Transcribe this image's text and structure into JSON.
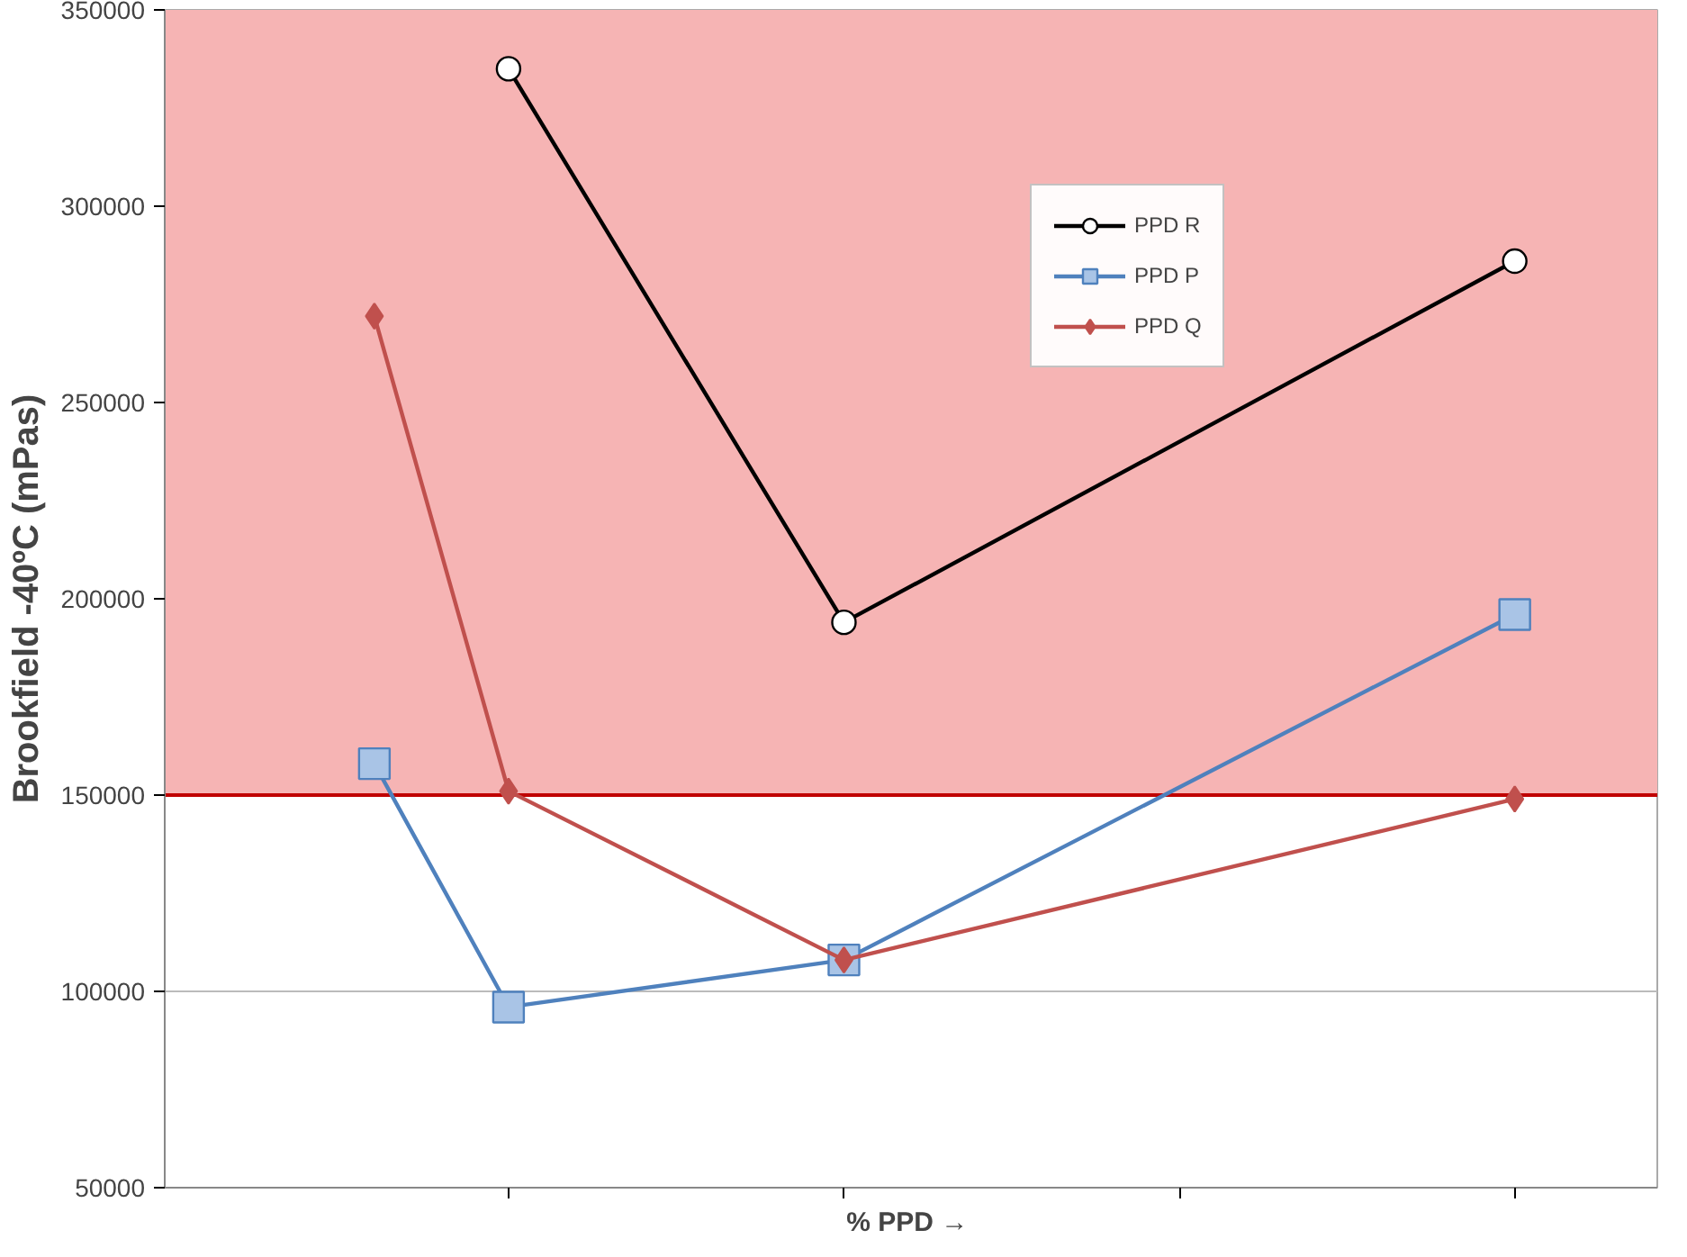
{
  "chart_data": {
    "type": "line",
    "xlabel": "% PPD  →",
    "ylabel": "Brookfield -40ºC (mPas)",
    "categories": [
      null,
      null,
      null,
      null,
      null,
      null,
      null,
      null,
      null,
      null,
      null,
      null,
      null,
      null,
      null,
      null,
      null,
      null,
      null,
      null,
      null,
      null,
      null,
      null,
      null,
      null,
      null,
      null,
      null,
      null,
      null,
      null,
      null,
      null,
      null,
      null,
      null,
      null,
      null,
      null,
      null,
      null,
      null,
      null,
      null,
      null,
      null,
      null,
      null,
      null,
      null,
      null,
      null,
      null,
      null,
      null,
      null,
      null,
      null,
      null,
      null,
      null,
      null,
      null,
      null,
      null,
      null,
      null,
      null,
      null,
      null,
      null,
      null,
      null,
      null,
      null,
      null,
      null,
      null,
      null,
      null,
      null,
      null,
      null,
      null,
      null,
      null,
      null,
      null
    ],
    "ylim": [
      50000,
      350000
    ],
    "yticks": [
      50000,
      100000,
      150000,
      200000,
      250000,
      300000,
      350000
    ],
    "tick_labels": "y",
    "grid": "y",
    "legend": "top right",
    "line_style": "solid",
    "series": [
      {
        "name": "PPD R",
        "color": "#000000",
        "marker": "circle",
        "values": [
          null,
          null,
          null,
          null,
          null,
          null,
          null,
          null,
          null,
          null,
          null,
          null,
          null,
          null,
          null,
          null,
          null,
          null,
          null,
          null,
          335000,
          null,
          null,
          null,
          null,
          null,
          null,
          null,
          null,
          null,
          null,
          null,
          null,
          null,
          null,
          null,
          null,
          null,
          null,
          null,
          194000,
          null,
          null,
          null,
          null,
          null,
          null,
          null,
          null,
          null,
          null,
          null,
          null,
          null,
          null,
          null,
          null,
          null,
          null,
          null,
          null,
          null,
          null,
          null,
          null,
          null,
          null,
          null,
          null,
          null,
          null,
          null,
          null,
          null,
          null,
          null,
          null,
          null,
          null,
          null,
          286000,
          null,
          null,
          null,
          null,
          null,
          null,
          null,
          null
        ]
      },
      {
        "name": "PPD P",
        "color": "#4f81bd",
        "marker": "square",
        "values": [
          null,
          null,
          null,
          null,
          null,
          null,
          null,
          null,
          null,
          null,
          null,
          null,
          158000,
          null,
          null,
          null,
          null,
          null,
          null,
          null,
          96000,
          null,
          null,
          null,
          null,
          null,
          null,
          null,
          null,
          null,
          null,
          null,
          null,
          null,
          null,
          null,
          null,
          null,
          null,
          null,
          108000,
          null,
          null,
          null,
          null,
          null,
          null,
          null,
          null,
          null,
          null,
          null,
          null,
          null,
          null,
          null,
          null,
          null,
          null,
          null,
          null,
          null,
          null,
          null,
          null,
          null,
          null,
          null,
          null,
          null,
          null,
          null,
          null,
          null,
          null,
          null,
          null,
          null,
          null,
          null,
          196000,
          null,
          null,
          null,
          null,
          null,
          null,
          null,
          null
        ]
      },
      {
        "name": "PPD Q",
        "color": "#c0504d",
        "marker": "diamond",
        "values": [
          null,
          null,
          null,
          null,
          null,
          null,
          null,
          null,
          null,
          null,
          null,
          null,
          272000,
          null,
          null,
          null,
          null,
          null,
          null,
          null,
          151000,
          null,
          null,
          null,
          null,
          null,
          null,
          null,
          null,
          null,
          null,
          null,
          null,
          null,
          null,
          null,
          null,
          null,
          null,
          null,
          108000,
          null,
          null,
          null,
          null,
          null,
          null,
          null,
          null,
          null,
          null,
          null,
          null,
          null,
          null,
          null,
          null,
          null,
          null,
          null,
          null,
          null,
          null,
          null,
          null,
          null,
          null,
          null,
          null,
          null,
          null,
          null,
          null,
          null,
          null,
          null,
          null,
          null,
          null,
          null,
          149000,
          null,
          null,
          null,
          null,
          null,
          null,
          null,
          null
        ]
      }
    ],
    "bands": [
      {
        "axis": "y",
        "from": 150000,
        "to": 350000,
        "color": "#f6b4b4"
      }
    ],
    "ref_lines": [
      {
        "axis": "y",
        "value": 150000,
        "color": "#c00000",
        "line_style": "solid"
      }
    ]
  }
}
